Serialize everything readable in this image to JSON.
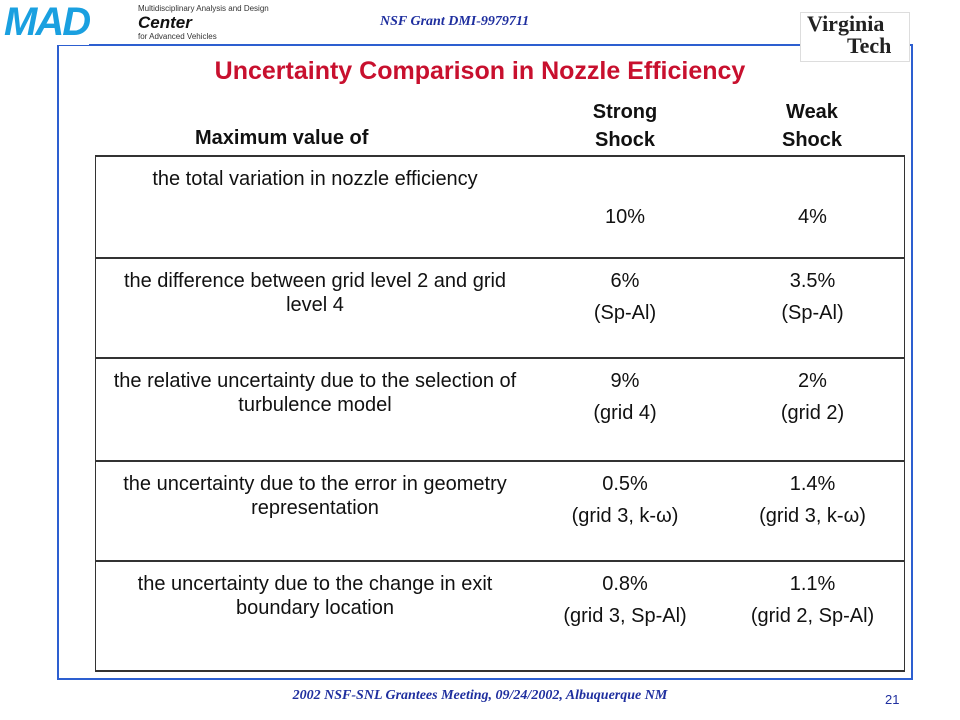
{
  "header": {
    "logo_mark": "MAD",
    "logo_lines": [
      "Multidisciplinary Analysis and Design",
      "Center",
      "for Advanced Vehicles"
    ],
    "grant": "NSF Grant DMI-9979711",
    "university": [
      "Virginia",
      "Tech"
    ]
  },
  "title": "Uncertainty Comparison in Nozzle Efficiency",
  "table": {
    "columns": [
      "Maximum value of",
      "Strong Shock",
      "Weak Shock"
    ],
    "rows": [
      [
        "the total variation in nozzle efficiency",
        [
          "10%"
        ],
        [
          "4%"
        ]
      ],
      [
        "the difference between grid level 2 and grid level 4",
        [
          "6%",
          "(Sp-Al)"
        ],
        [
          "3.5%",
          "(Sp-Al)"
        ]
      ],
      [
        "the relative uncertainty due to the selection of  turbulence model",
        [
          "9%",
          "(grid 4)"
        ],
        [
          "2%",
          "(grid 2)"
        ]
      ],
      [
        "the uncertainty due to the error in geometry representation",
        [
          "0.5%",
          "(grid 3, k-ω)"
        ],
        [
          "1.4%",
          "(grid 3, k-ω)"
        ]
      ],
      [
        "the uncertainty due to the change in exit boundary location",
        [
          "0.8%",
          "(grid 3, Sp-Al)"
        ],
        [
          "1.1%",
          "(grid 2, Sp-Al)"
        ]
      ]
    ]
  },
  "footer": "2002 NSF-SNL Grantees Meeting, 09/24/2002, Albuquerque NM",
  "page_number": "21"
}
